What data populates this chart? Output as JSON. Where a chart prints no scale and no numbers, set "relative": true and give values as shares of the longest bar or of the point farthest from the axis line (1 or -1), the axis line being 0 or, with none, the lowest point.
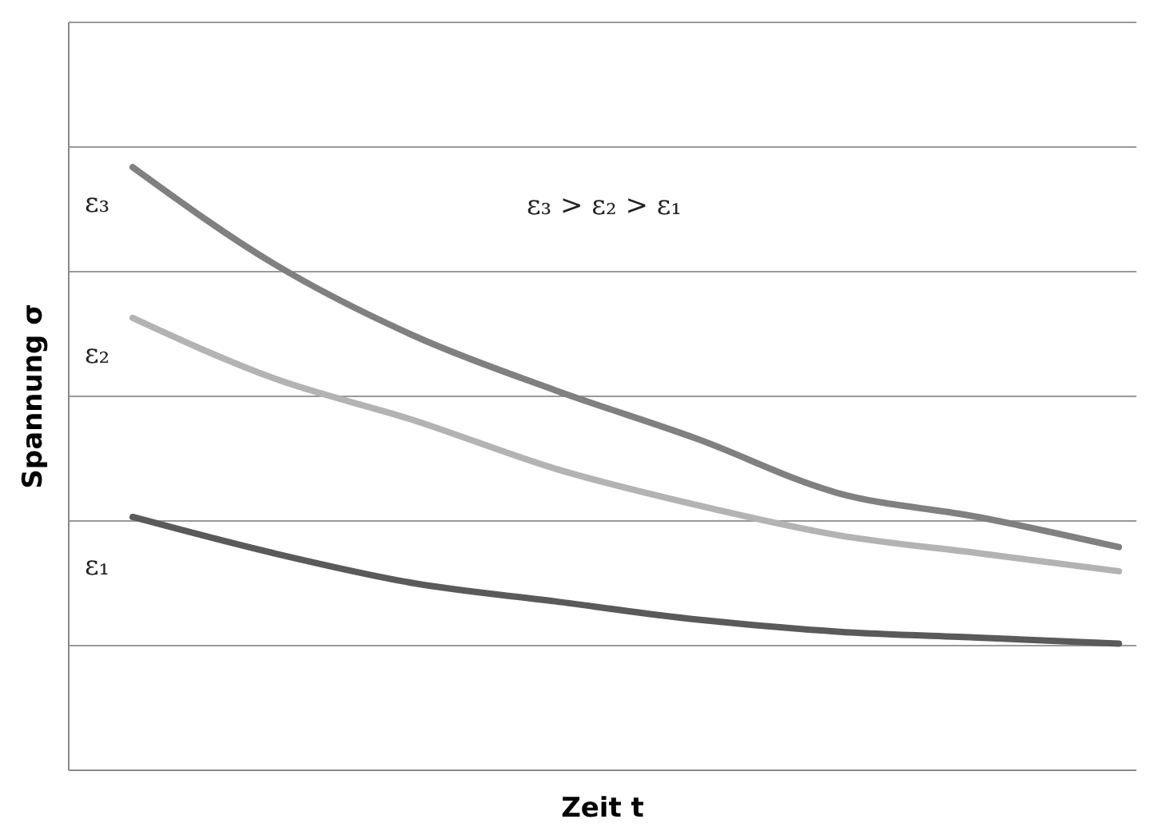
{
  "chart_data": {
    "type": "line",
    "relative": true,
    "xlabel": "Zeit t",
    "ylabel": "Spannung σ",
    "categories": [
      null,
      null,
      null,
      null,
      null,
      null,
      null,
      null
    ],
    "series": [
      {
        "name": "ε₃",
        "color": "#808080",
        "values": [
          1,
          0.84,
          0.72,
          0.63,
          0.55,
          0.46,
          0.42,
          0.37
        ]
      },
      {
        "name": "ε₂",
        "color": "#b3b3b3",
        "values": [
          0.75,
          0.65,
          0.58,
          0.5,
          0.44,
          0.39,
          0.36,
          0.33
        ]
      },
      {
        "name": "ε₁",
        "color": "#5a5a5a",
        "values": [
          0.42,
          0.36,
          0.31,
          0.28,
          0.25,
          0.23,
          0.22,
          0.21
        ]
      }
    ],
    "annotations": [
      "ε₃ > ε₂ > ε₁"
    ],
    "grid": "y",
    "legend": false,
    "marker": "none",
    "line_style": "solid"
  }
}
